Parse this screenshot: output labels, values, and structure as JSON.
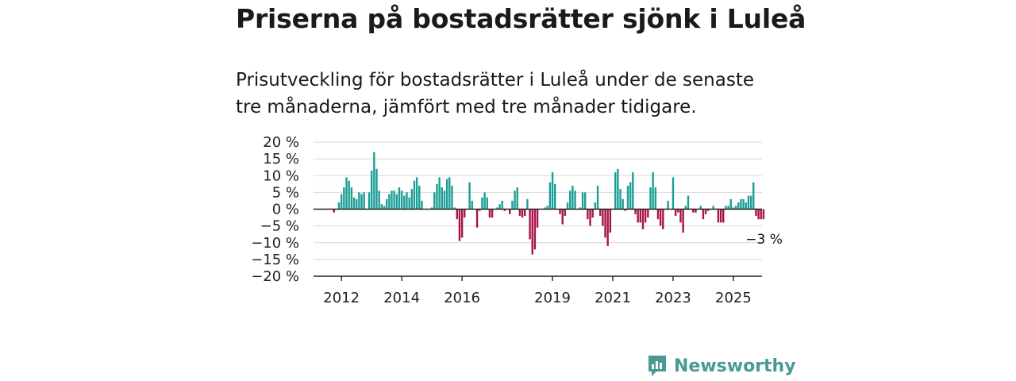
{
  "header": {
    "title": "Priserna på bostadsrätter sjönk i Luleå",
    "subtitle": "Prisutveckling för bostadsrätter i Luleå under de senaste tre månaderna, jämfört med tre månader tidigare."
  },
  "brand": {
    "name": "Newsworthy",
    "icon": "newsworthy-logo-icon",
    "color": "#4a9a94"
  },
  "colors": {
    "positive": "#1b9e96",
    "negative": "#a8134b",
    "zero_line": "#222222",
    "grid": "#d9d9d9"
  },
  "chart_data": {
    "type": "bar",
    "title": "",
    "xlabel": "",
    "ylabel": "",
    "ylim": [
      -20,
      20
    ],
    "y_ticks": [
      {
        "value": 20,
        "label": "20 %"
      },
      {
        "value": 15,
        "label": "15 %"
      },
      {
        "value": 10,
        "label": "10 %"
      },
      {
        "value": 5,
        "label": "5 %"
      },
      {
        "value": 0,
        "label": "0 %"
      },
      {
        "value": -5,
        "label": "−5 %"
      },
      {
        "value": -10,
        "label": "−10 %"
      },
      {
        "value": -15,
        "label": "−15 %"
      },
      {
        "value": -20,
        "label": "−20 %"
      }
    ],
    "x_ticks": [
      "2012",
      "2014",
      "2016",
      "2019",
      "2021",
      "2023",
      "2025"
    ],
    "x_tick_index": [
      3,
      27,
      51,
      87,
      111,
      135,
      159
    ],
    "grid": true,
    "last_value_label": "−3 %",
    "values": [
      -1,
      0,
      2,
      4.5,
      6.5,
      9.5,
      8.5,
      6.5,
      3.5,
      3,
      5,
      4.5,
      5,
      0,
      5,
      11.5,
      17,
      12,
      5.5,
      1.5,
      1,
      3,
      4.5,
      5.5,
      5.5,
      4.5,
      6.5,
      5.5,
      4,
      5,
      3.5,
      6,
      8.5,
      9.5,
      7,
      2.5,
      0,
      0,
      0,
      0.5,
      5,
      7.5,
      9.5,
      6.5,
      5.5,
      9,
      9.5,
      7,
      0.5,
      -3,
      -9.5,
      -8.5,
      -2.5,
      0,
      8,
      2.5,
      0,
      -5.5,
      -0.5,
      3.5,
      5,
      3.5,
      -2.5,
      -2.5,
      0,
      0.5,
      1.5,
      2.5,
      -0.5,
      0,
      -1.5,
      2.5,
      5.5,
      6.5,
      -2,
      -2.5,
      -2,
      3,
      -9,
      -13.5,
      -12,
      -5.5,
      0,
      0,
      0.5,
      1,
      8,
      11,
      7.5,
      0,
      -1.5,
      -4.5,
      -2,
      2,
      5.5,
      7,
      5.5,
      0,
      0.5,
      5,
      5,
      -3,
      -5,
      -2.5,
      2,
      7,
      -2,
      -5,
      -8.5,
      -11,
      -7,
      0,
      11,
      12,
      6,
      3,
      -0.5,
      7,
      8,
      11,
      -1.5,
      -4,
      -4,
      -6,
      -4,
      -2.5,
      6.5,
      11,
      6.5,
      -3,
      -5,
      -6,
      0,
      2.5,
      0,
      9.5,
      -2,
      -1,
      -4,
      -7,
      1,
      4,
      0,
      -1,
      -1,
      0,
      1,
      -3,
      -1.5,
      -0.5,
      0,
      1,
      0,
      -4,
      -4,
      -4,
      1,
      1,
      3,
      0.5,
      1,
      2,
      3,
      3,
      2,
      4,
      4,
      8,
      -2,
      -3,
      -3,
      -3
    ]
  }
}
